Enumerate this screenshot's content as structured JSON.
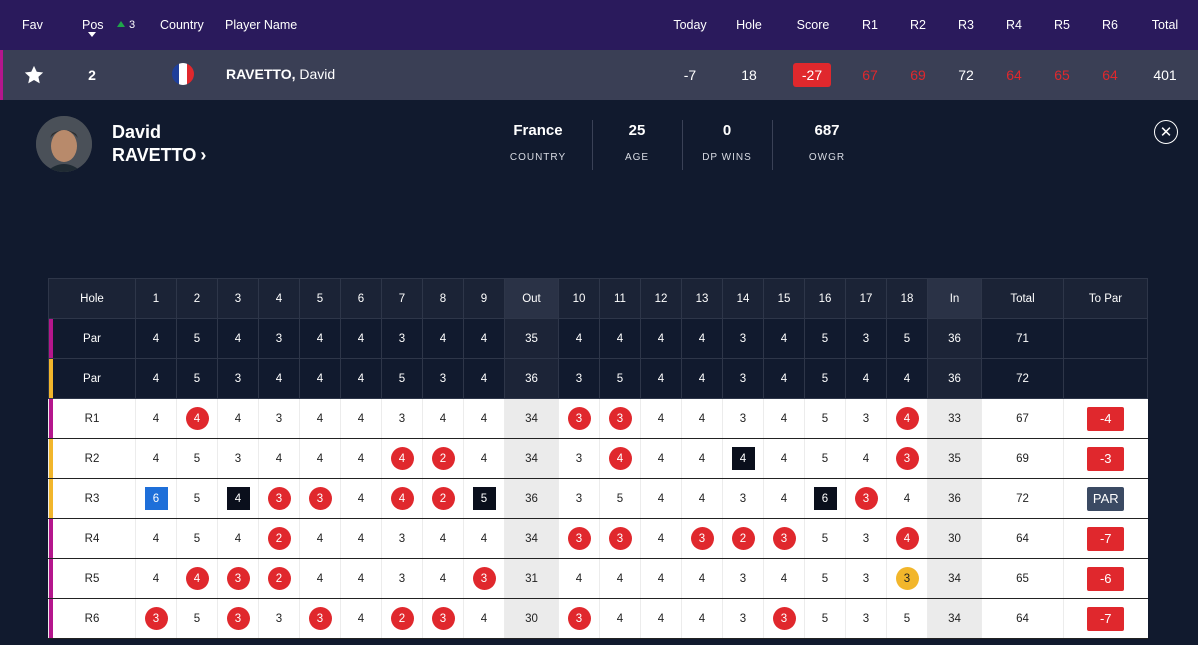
{
  "header": {
    "fav": "Fav",
    "pos": "Pos",
    "country": "Country",
    "player_name": "Player Name",
    "today": "Today",
    "hole": "Hole",
    "score": "Score",
    "r1": "R1",
    "r2": "R2",
    "r3": "R3",
    "r4": "R4",
    "r5": "R5",
    "r6": "R6",
    "total": "Total"
  },
  "player_row": {
    "pos": "2",
    "movement": "3",
    "surname": "RAVETTO,",
    "firstname": "David",
    "today": "-7",
    "hole": "18",
    "score": "-27",
    "r1": "67",
    "r2": "69",
    "r3": "72",
    "r4": "64",
    "r5": "65",
    "r6": "64",
    "total": "401",
    "flag_colors": [
      "#1f3f9a",
      "#ffffff",
      "#e0282d"
    ]
  },
  "profile": {
    "first_name": "David",
    "last_name": "RAVETTO",
    "stats": [
      {
        "value": "France",
        "label": "COUNTRY"
      },
      {
        "value": "25",
        "label": "AGE"
      },
      {
        "value": "0",
        "label": "DP WINS"
      },
      {
        "value": "687",
        "label": "OWGR"
      }
    ]
  },
  "icons": {
    "favorite": "star-icon",
    "close": "close-icon",
    "profile_link": "chevron-right-icon",
    "sort": "caret-down-icon"
  },
  "scorecard": {
    "headers": [
      "Hole",
      "1",
      "2",
      "3",
      "4",
      "5",
      "6",
      "7",
      "8",
      "9",
      "Out",
      "10",
      "11",
      "12",
      "13",
      "14",
      "15",
      "16",
      "17",
      "18",
      "In",
      "Total",
      "To Par"
    ],
    "pars": [
      {
        "label": "Par",
        "values": [
          "4",
          "5",
          "4",
          "3",
          "4",
          "4",
          "3",
          "4",
          "4",
          "35",
          "4",
          "4",
          "4",
          "4",
          "3",
          "4",
          "5",
          "3",
          "5",
          "36",
          "71",
          ""
        ]
      },
      {
        "label": "Par",
        "values": [
          "4",
          "5",
          "3",
          "4",
          "4",
          "4",
          "5",
          "3",
          "4",
          "36",
          "3",
          "5",
          "4",
          "4",
          "3",
          "4",
          "5",
          "4",
          "4",
          "36",
          "72",
          ""
        ]
      }
    ],
    "rounds": [
      {
        "label": "R1",
        "to_par": "-4",
        "to_par_type": "under",
        "values": [
          "4",
          "4",
          "4",
          "3",
          "4",
          "4",
          "3",
          "4",
          "4",
          "34",
          "3",
          "3",
          "4",
          "4",
          "3",
          "4",
          "5",
          "3",
          "4",
          "33",
          "67"
        ],
        "marks": [
          "",
          "birdie",
          "",
          "",
          "",
          "",
          "",
          "",
          "",
          "",
          "birdie",
          "birdie",
          "",
          "",
          "",
          "",
          "",
          "",
          "birdie",
          "",
          ""
        ]
      },
      {
        "label": "R2",
        "to_par": "-3",
        "to_par_type": "under",
        "values": [
          "4",
          "5",
          "3",
          "4",
          "4",
          "4",
          "4",
          "2",
          "4",
          "34",
          "3",
          "4",
          "4",
          "4",
          "4",
          "4",
          "5",
          "4",
          "3",
          "35",
          "69"
        ],
        "marks": [
          "",
          "",
          "",
          "",
          "",
          "",
          "birdie",
          "birdie",
          "",
          "",
          "",
          "birdie",
          "",
          "",
          "bogey",
          "",
          "",
          "",
          "birdie",
          "",
          ""
        ]
      },
      {
        "label": "R3",
        "to_par": "PAR",
        "to_par_type": "even",
        "values": [
          "6",
          "5",
          "4",
          "3",
          "3",
          "4",
          "4",
          "2",
          "5",
          "36",
          "3",
          "5",
          "4",
          "4",
          "3",
          "4",
          "6",
          "3",
          "4",
          "36",
          "72"
        ],
        "marks": [
          "double",
          "",
          "bogey",
          "birdie",
          "birdie",
          "",
          "birdie",
          "birdie",
          "bogey",
          "",
          "",
          "",
          "",
          "",
          "",
          "",
          "bogey",
          "birdie",
          "",
          "",
          ""
        ]
      },
      {
        "label": "R4",
        "to_par": "-7",
        "to_par_type": "under",
        "values": [
          "4",
          "5",
          "4",
          "2",
          "4",
          "4",
          "3",
          "4",
          "4",
          "34",
          "3",
          "3",
          "4",
          "3",
          "2",
          "3",
          "5",
          "3",
          "4",
          "30",
          "64"
        ],
        "marks": [
          "",
          "",
          "",
          "birdie",
          "",
          "",
          "",
          "",
          "",
          "",
          "birdie",
          "birdie",
          "",
          "birdie",
          "birdie",
          "birdie",
          "",
          "",
          "birdie",
          "",
          ""
        ]
      },
      {
        "label": "R5",
        "to_par": "-6",
        "to_par_type": "under",
        "values": [
          "4",
          "4",
          "3",
          "2",
          "4",
          "4",
          "3",
          "4",
          "3",
          "31",
          "4",
          "4",
          "4",
          "4",
          "3",
          "4",
          "5",
          "3",
          "3",
          "34",
          "65"
        ],
        "marks": [
          "",
          "birdie",
          "birdie",
          "birdie",
          "",
          "",
          "",
          "",
          "birdie",
          "",
          "",
          "",
          "",
          "",
          "",
          "",
          "",
          "",
          "eagle",
          "",
          ""
        ]
      },
      {
        "label": "R6",
        "to_par": "-7",
        "to_par_type": "under",
        "values": [
          "3",
          "5",
          "3",
          "3",
          "3",
          "4",
          "2",
          "3",
          "4",
          "30",
          "3",
          "4",
          "4",
          "4",
          "3",
          "3",
          "5",
          "3",
          "5",
          "34",
          "64"
        ],
        "marks": [
          "birdie",
          "",
          "birdie",
          "",
          "birdie",
          "",
          "birdie",
          "birdie",
          "",
          "",
          "birdie",
          "",
          "",
          "",
          "",
          "birdie",
          "",
          "",
          "",
          "",
          ""
        ]
      }
    ]
  }
}
